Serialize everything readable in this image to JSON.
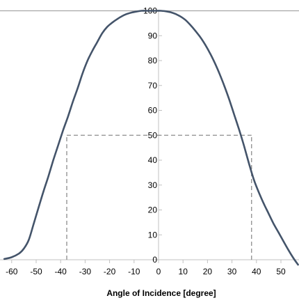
{
  "chart_data": {
    "type": "line",
    "xlabel": "Angle of Incidence [degree]",
    "ylabel": "",
    "xlim": [
      -63,
      57
    ],
    "ylim": [
      0,
      100
    ],
    "x_ticks": [
      -60,
      -50,
      -40,
      -30,
      -20,
      -10,
      0,
      10,
      20,
      30,
      40,
      50
    ],
    "y_ticks": [
      0,
      10,
      20,
      30,
      40,
      50,
      60,
      70,
      80,
      90,
      100
    ],
    "grid": false,
    "series": [
      {
        "color": "#44546a",
        "x": [
          -63,
          -60,
          -57,
          -55,
          -53,
          -51,
          -49,
          -47,
          -45,
          -43,
          -41,
          -39,
          -37,
          -35,
          -33,
          -31,
          -29,
          -27,
          -25,
          -23,
          -21,
          -19,
          -17,
          -15,
          -13,
          -11,
          -9,
          -7,
          -5,
          -3,
          -1,
          1,
          3,
          5,
          7,
          9,
          11,
          13,
          15,
          17,
          19,
          21,
          23,
          25,
          27,
          29,
          31,
          33,
          35,
          37,
          39,
          41,
          43,
          45,
          47,
          49,
          51,
          53,
          55,
          57
        ],
        "y": [
          0.3,
          1,
          2.5,
          4.5,
          8,
          14.5,
          21,
          27.5,
          33.5,
          40,
          46,
          52,
          57.5,
          63.5,
          69,
          75,
          80,
          84,
          87.5,
          91,
          93.5,
          95.2,
          96.6,
          97.8,
          98.7,
          99.3,
          99.7,
          100,
          100,
          100,
          100,
          100,
          99.8,
          99.4,
          98.7,
          97.7,
          96.3,
          94.3,
          92,
          89.5,
          86.5,
          83,
          79,
          74.5,
          69.5,
          64,
          58,
          52,
          45.5,
          38.5,
          32,
          27,
          22.5,
          18.5,
          14.5,
          11,
          7.5,
          4,
          0.8,
          -2
        ]
      }
    ],
    "reference_lines": [
      {
        "orientation": "horizontal",
        "y": 100
      },
      {
        "orientation": "horizontal",
        "y": 50,
        "x_from": -37.5,
        "x_to": 38,
        "style": "dashed"
      },
      {
        "orientation": "vertical",
        "x": -37.5,
        "y_from": 0,
        "y_to": 50,
        "style": "dashed"
      },
      {
        "orientation": "vertical",
        "x": 38,
        "y_from": 0,
        "y_to": 50,
        "style": "dashed"
      }
    ],
    "colors": {
      "axis": "#c0c0c0",
      "series": "#44546a",
      "reference": "#a6a6a6",
      "dashed": "#8c8c8c"
    }
  }
}
